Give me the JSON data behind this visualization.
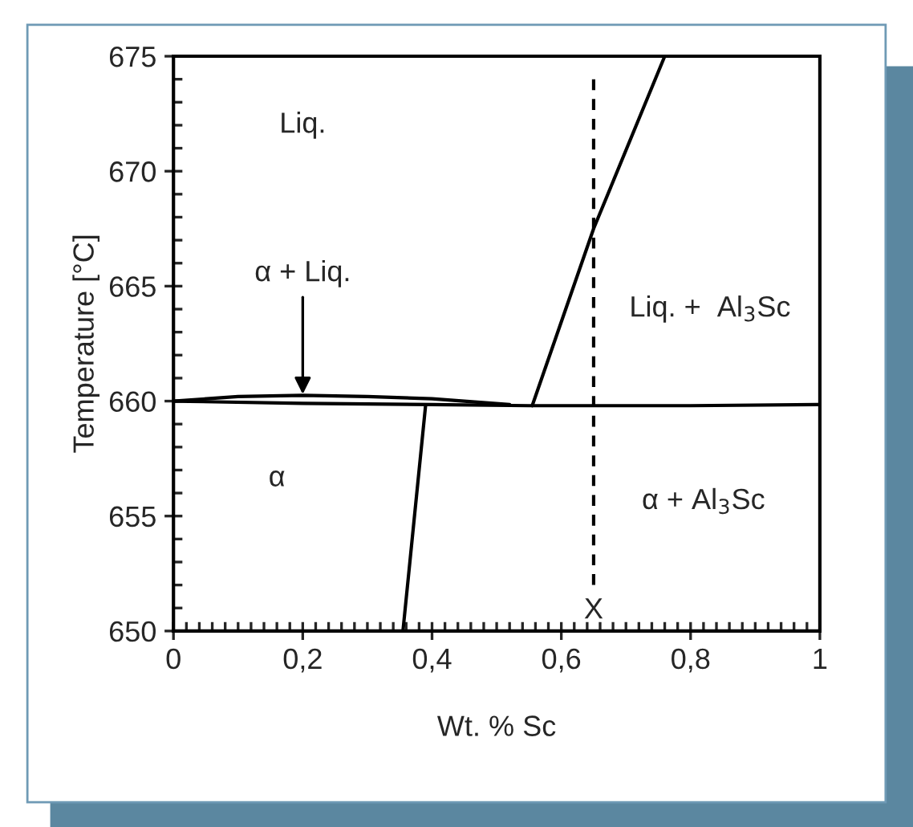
{
  "chart_data": {
    "type": "line",
    "xlabel": "Wt. % Sc",
    "ylabel": "Temperature [°C]",
    "xlim": [
      0,
      1
    ],
    "ylim": [
      650,
      675
    ],
    "xticks": [
      0,
      {
        "value": 0.2,
        "label": "0,2"
      },
      {
        "value": 0.4,
        "label": "0,4"
      },
      {
        "value": 0.6,
        "label": "0,6"
      },
      {
        "value": 0.8,
        "label": "0,8"
      },
      1
    ],
    "yticks": [
      650,
      655,
      660,
      665,
      670,
      675
    ],
    "grid": false,
    "legend": false,
    "marker": "none",
    "series": [
      {
        "color": "#000000",
        "line_style": "solid",
        "x": [
          0,
          0.1,
          0.2,
          0.3,
          0.4,
          0.52
        ],
        "values": [
          660,
          660.2,
          660.25,
          660.2,
          660.1,
          659.85
        ]
      },
      {
        "color": "#000000",
        "line_style": "solid",
        "x": [
          0,
          0.2,
          0.4,
          0.55,
          0.8,
          1
        ],
        "values": [
          660,
          659.9,
          659.85,
          659.8,
          659.8,
          659.85
        ]
      },
      {
        "color": "#000000",
        "line_style": "solid",
        "x": [
          0.355,
          0.39
        ],
        "values": [
          650,
          659.8
        ]
      },
      {
        "color": "#000000",
        "line_style": "solid",
        "x": [
          0.555,
          0.65,
          0.76
        ],
        "values": [
          659.8,
          667.5,
          675
        ]
      },
      {
        "color": "#000000",
        "line_style": "dashed",
        "x": [
          0.65,
          0.65
        ],
        "values": [
          674,
          652
        ]
      }
    ],
    "annotations": [
      "Liq.",
      {
        "text": "α + Liq.",
        "x": 0.2,
        "y": 660.3
      },
      "Liq. +  Al$_{3}$Sc",
      "α",
      "α + Al$_{3}$Sc",
      "X"
    ]
  }
}
